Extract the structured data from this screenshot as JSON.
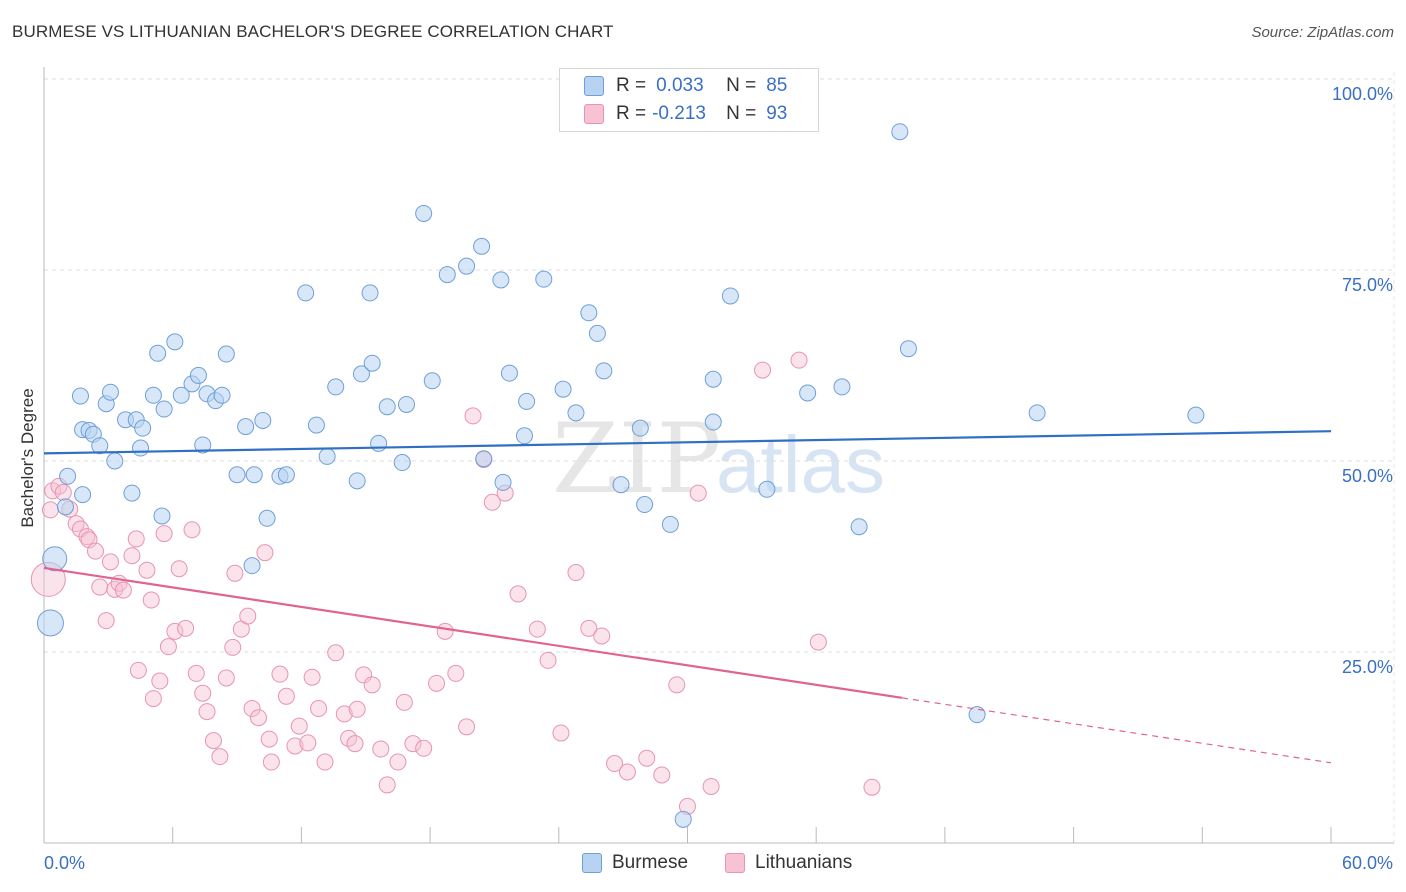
{
  "header": {
    "title": "BURMESE VS LITHUANIAN BACHELOR'S DEGREE CORRELATION CHART",
    "source": "Source: ZipAtlas.com"
  },
  "watermark": {
    "zip": "ZIP",
    "atlas": "atlas"
  },
  "legend": {
    "r_label": "R =",
    "n_label": "N =",
    "burmese": {
      "r": "0.033",
      "n": "85"
    },
    "lithuanians": {
      "r": "-0.213",
      "n": "93"
    }
  },
  "colors": {
    "burmese_fill": "#b8d3f2",
    "burmese_stroke": "#6f9fd8",
    "burmese_line": "#2f6fc4",
    "lith_fill": "#f7c2d3",
    "lith_stroke": "#e894b1",
    "lith_line": "#e0648f",
    "tick_label": "#3a6fc4"
  },
  "chart_data": {
    "type": "scatter",
    "title": "BURMESE VS LITHUANIAN BACHELOR'S DEGREE CORRELATION CHART",
    "xlabel": "",
    "ylabel": "Bachelor's Degree",
    "xlim": [
      0,
      60
    ],
    "ylim": [
      0,
      100
    ],
    "x_tick_labels": [
      "0.0%",
      "60.0%"
    ],
    "y_ticks": [
      25,
      50,
      75,
      100
    ],
    "y_tick_labels": [
      "25.0%",
      "50.0%",
      "75.0%",
      "100.0%"
    ],
    "legend_entries": [
      "Burmese",
      "Lithuanians"
    ],
    "series": [
      {
        "name": "Burmese",
        "r": 0.033,
        "n": 85,
        "trend": {
          "x0": 0,
          "y0": 51.0,
          "x1": 60,
          "y1": 53.9
        },
        "points": [
          [
            0.5,
            37.2
          ],
          [
            0.3,
            28.8
          ],
          [
            1.1,
            48.0
          ],
          [
            1.0,
            44.0
          ],
          [
            1.8,
            45.6
          ],
          [
            1.8,
            54.1
          ],
          [
            1.7,
            58.5
          ],
          [
            2.1,
            54.0
          ],
          [
            2.3,
            53.5
          ],
          [
            2.6,
            52.0
          ],
          [
            2.9,
            57.5
          ],
          [
            3.1,
            59.0
          ],
          [
            3.3,
            50.0
          ],
          [
            3.8,
            55.4
          ],
          [
            4.3,
            55.4
          ],
          [
            4.5,
            51.7
          ],
          [
            4.1,
            45.8
          ],
          [
            4.6,
            54.3
          ],
          [
            5.1,
            58.6
          ],
          [
            5.3,
            64.1
          ],
          [
            5.6,
            56.8
          ],
          [
            5.5,
            42.8
          ],
          [
            6.1,
            65.6
          ],
          [
            6.4,
            58.6
          ],
          [
            6.9,
            60.1
          ],
          [
            7.2,
            61.2
          ],
          [
            7.4,
            52.1
          ],
          [
            7.6,
            58.8
          ],
          [
            8.0,
            57.9
          ],
          [
            8.5,
            64.0
          ],
          [
            8.3,
            58.6
          ],
          [
            9.4,
            54.5
          ],
          [
            9.0,
            48.2
          ],
          [
            9.7,
            36.3
          ],
          [
            9.8,
            48.2
          ],
          [
            10.2,
            55.3
          ],
          [
            10.4,
            42.5
          ],
          [
            11.0,
            48.0
          ],
          [
            11.3,
            48.2
          ],
          [
            12.2,
            72.0
          ],
          [
            12.7,
            54.7
          ],
          [
            13.6,
            59.7
          ],
          [
            13.2,
            50.6
          ],
          [
            14.6,
            47.4
          ],
          [
            14.8,
            61.4
          ],
          [
            15.2,
            72.0
          ],
          [
            15.3,
            62.8
          ],
          [
            15.6,
            52.3
          ],
          [
            16.0,
            57.1
          ],
          [
            16.7,
            49.8
          ],
          [
            16.9,
            57.4
          ],
          [
            17.7,
            82.4
          ],
          [
            18.1,
            60.5
          ],
          [
            18.8,
            74.4
          ],
          [
            19.7,
            75.5
          ],
          [
            20.4,
            78.1
          ],
          [
            20.5,
            50.3
          ],
          [
            21.3,
            73.7
          ],
          [
            21.4,
            47.2
          ],
          [
            21.7,
            61.5
          ],
          [
            22.4,
            53.3
          ],
          [
            22.5,
            57.8
          ],
          [
            23.3,
            73.8
          ],
          [
            24.2,
            59.4
          ],
          [
            24.8,
            56.3
          ],
          [
            25.4,
            69.4
          ],
          [
            25.8,
            66.7
          ],
          [
            26.1,
            61.8
          ],
          [
            26.9,
            46.9
          ],
          [
            27.8,
            54.3
          ],
          [
            28.0,
            44.3
          ],
          [
            29.2,
            41.7
          ],
          [
            31.2,
            60.7
          ],
          [
            31.2,
            55.1
          ],
          [
            32.0,
            71.6
          ],
          [
            33.7,
            46.3
          ],
          [
            35.6,
            58.9
          ],
          [
            37.2,
            59.7
          ],
          [
            38.0,
            41.4
          ],
          [
            40.3,
            64.7
          ],
          [
            43.5,
            16.8
          ],
          [
            29.8,
            3.1
          ],
          [
            39.9,
            93.1
          ],
          [
            53.7,
            56.0
          ],
          [
            46.3,
            56.3
          ]
        ]
      },
      {
        "name": "Lithuanians",
        "r": -0.213,
        "n": 93,
        "trend": {
          "x0": 0,
          "y0": 36.0,
          "x1": 40,
          "y1": 19.0,
          "dashed_to_x": 60,
          "dashed_to_y": 10.5
        },
        "points": [
          [
            0.2,
            34.5
          ],
          [
            0.3,
            43.6
          ],
          [
            0.4,
            46.1
          ],
          [
            0.7,
            46.7
          ],
          [
            0.9,
            45.9
          ],
          [
            1.2,
            43.7
          ],
          [
            1.5,
            41.8
          ],
          [
            1.7,
            41.1
          ],
          [
            2.0,
            40.1
          ],
          [
            2.1,
            39.7
          ],
          [
            2.4,
            38.2
          ],
          [
            2.6,
            33.5
          ],
          [
            2.9,
            29.1
          ],
          [
            3.1,
            36.8
          ],
          [
            3.3,
            33.2
          ],
          [
            3.5,
            34.0
          ],
          [
            3.7,
            33.1
          ],
          [
            4.1,
            37.6
          ],
          [
            4.3,
            39.8
          ],
          [
            4.4,
            22.6
          ],
          [
            4.8,
            35.7
          ],
          [
            5.0,
            31.8
          ],
          [
            5.1,
            18.9
          ],
          [
            5.4,
            21.2
          ],
          [
            5.6,
            40.5
          ],
          [
            5.8,
            25.7
          ],
          [
            6.1,
            27.7
          ],
          [
            6.3,
            35.9
          ],
          [
            6.6,
            28.1
          ],
          [
            6.9,
            41.0
          ],
          [
            7.1,
            22.2
          ],
          [
            7.4,
            19.6
          ],
          [
            7.6,
            17.2
          ],
          [
            7.9,
            13.4
          ],
          [
            8.2,
            11.3
          ],
          [
            8.5,
            21.6
          ],
          [
            8.8,
            25.6
          ],
          [
            8.9,
            35.3
          ],
          [
            9.2,
            28.0
          ],
          [
            9.5,
            29.7
          ],
          [
            9.7,
            17.6
          ],
          [
            10.0,
            16.4
          ],
          [
            10.3,
            38.0
          ],
          [
            10.5,
            13.6
          ],
          [
            10.6,
            10.6
          ],
          [
            11.0,
            22.1
          ],
          [
            11.3,
            19.2
          ],
          [
            11.7,
            12.7
          ],
          [
            11.9,
            15.3
          ],
          [
            12.3,
            13.1
          ],
          [
            12.5,
            21.7
          ],
          [
            12.8,
            17.6
          ],
          [
            13.1,
            10.6
          ],
          [
            13.6,
            24.9
          ],
          [
            14.0,
            16.9
          ],
          [
            14.2,
            13.7
          ],
          [
            14.5,
            13.0
          ],
          [
            14.6,
            17.5
          ],
          [
            14.9,
            22.0
          ],
          [
            15.3,
            20.7
          ],
          [
            15.7,
            12.3
          ],
          [
            16.0,
            7.6
          ],
          [
            16.5,
            10.6
          ],
          [
            16.8,
            18.4
          ],
          [
            17.2,
            13.0
          ],
          [
            17.7,
            12.4
          ],
          [
            18.3,
            20.9
          ],
          [
            18.7,
            27.7
          ],
          [
            19.2,
            22.2
          ],
          [
            19.7,
            15.2
          ],
          [
            20.0,
            55.9
          ],
          [
            20.5,
            50.2
          ],
          [
            20.9,
            44.6
          ],
          [
            21.5,
            45.8
          ],
          [
            22.1,
            32.6
          ],
          [
            23.0,
            28.0
          ],
          [
            23.5,
            23.9
          ],
          [
            24.1,
            14.4
          ],
          [
            24.8,
            35.4
          ],
          [
            25.4,
            28.1
          ],
          [
            26.0,
            27.1
          ],
          [
            26.6,
            10.4
          ],
          [
            27.2,
            9.3
          ],
          [
            28.1,
            11.1
          ],
          [
            28.8,
            8.9
          ],
          [
            29.5,
            20.7
          ],
          [
            30.0,
            4.8
          ],
          [
            30.5,
            45.8
          ],
          [
            31.1,
            7.4
          ],
          [
            33.5,
            61.9
          ],
          [
            35.2,
            63.2
          ],
          [
            36.1,
            26.3
          ],
          [
            38.6,
            7.3
          ]
        ]
      }
    ]
  }
}
